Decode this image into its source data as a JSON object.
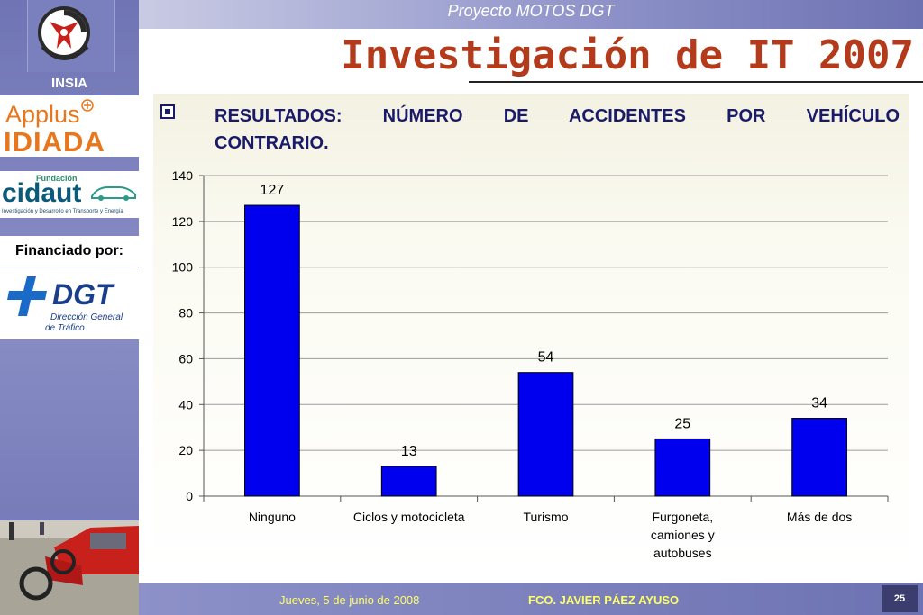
{
  "header": {
    "project": "Proyecto MOTOS DGT",
    "title": "Investigación de IT 2007"
  },
  "sidebar": {
    "insia_label": "INSIA",
    "applus": "Applus",
    "idiada": "IDIADA",
    "cidaut_fundacion": "Fundación",
    "cidaut": "cidaut",
    "cidaut_sub": "Investigación y Desarrollo en Transporte y Energía",
    "financiado": "Financiado por:",
    "dgt": "DGT",
    "dgt_sub1": "Dirección General",
    "dgt_sub2": "de Tráfico"
  },
  "section": {
    "heading_line1": "RESULTADOS: NÚMERO DE ACCIDENTES POR VEHÍCULO",
    "heading_line2": "CONTRARIO."
  },
  "chart_data": {
    "type": "bar",
    "categories": [
      [
        "Ninguno"
      ],
      [
        "Ciclos y motocicleta"
      ],
      [
        "Turismo"
      ],
      [
        "Furgoneta,",
        "camiones y",
        "autobuses"
      ],
      [
        "Más de dos"
      ]
    ],
    "values": [
      127,
      13,
      54,
      25,
      34
    ],
    "data_labels": [
      "127",
      "13",
      "54",
      "25",
      "34"
    ],
    "ylim": [
      0,
      140
    ],
    "yticks": [
      0,
      20,
      40,
      60,
      80,
      100,
      120,
      140
    ],
    "grid": true,
    "bar_color": "#0000ee",
    "title": "",
    "xlabel": "",
    "ylabel": ""
  },
  "footer": {
    "date": "Jueves, 5 de junio de 2008",
    "author": "FCO. JAVIER PÁEZ AYUSO",
    "page": "25"
  },
  "colors": {
    "title": "#b33a1a",
    "heading": "#1a1a6a",
    "sidebar": "#7a7fbd",
    "footer_text": "#ffff66"
  }
}
